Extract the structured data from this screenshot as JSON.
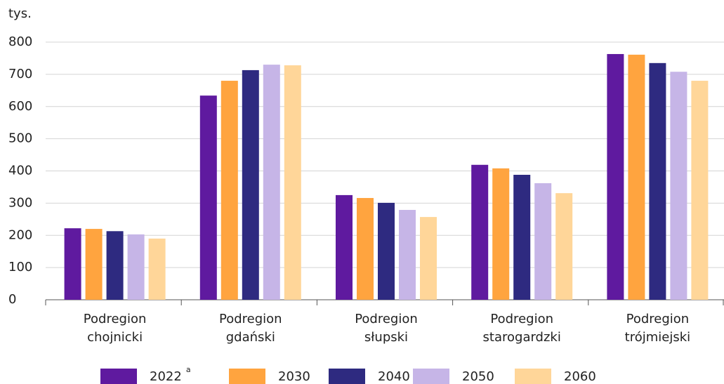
{
  "chart_data": {
    "type": "bar",
    "unit_label": "tys.",
    "categories": [
      [
        "Podregion",
        "chojnicki"
      ],
      [
        "Podregion",
        "gdański"
      ],
      [
        "Podregion",
        "słupski"
      ],
      [
        "Podregion",
        "starogardzki"
      ],
      [
        "Podregion",
        "trójmiejski"
      ]
    ],
    "series": [
      {
        "name": "2022",
        "note": "a",
        "color": "#5f1a9f",
        "values": [
          222,
          634,
          325,
          419,
          763
        ]
      },
      {
        "name": "2030",
        "color": "#ffa43f",
        "values": [
          220,
          680,
          316,
          408,
          761
        ]
      },
      {
        "name": "2040",
        "color": "#2e2a80",
        "values": [
          213,
          713,
          301,
          388,
          735
        ]
      },
      {
        "name": "2050",
        "color": "#c6b5e7",
        "values": [
          203,
          730,
          279,
          362,
          708
        ]
      },
      {
        "name": "2060",
        "color": "#ffd699",
        "values": [
          190,
          728,
          257,
          331,
          680
        ]
      }
    ],
    "ylim": [
      0,
      800
    ],
    "yticks": [
      0,
      100,
      200,
      300,
      400,
      500,
      600,
      700,
      800
    ],
    "grid": true,
    "legend": "bottom"
  }
}
